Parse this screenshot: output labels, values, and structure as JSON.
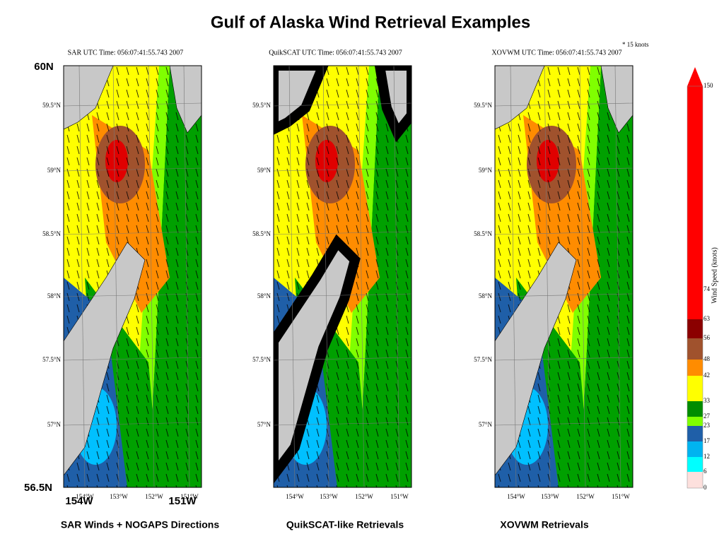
{
  "title": "Gulf of Alaska Wind Retrieval Examples",
  "corner_labels": {
    "lat_top": "60N",
    "lat_bottom": "56.5N",
    "lon_left": "154W",
    "lon_right": "151W"
  },
  "vector_key": "* 15 knots",
  "panels": [
    {
      "header": "SAR UTC Time: 056:07:41:55.743 2007",
      "caption": "SAR Winds + NOGAPS Directions",
      "lat_ticks": [
        "59.5°N",
        "59°N",
        "58.5°N",
        "58°N",
        "57.5°N",
        "57°N"
      ],
      "lon_ticks": [
        "154°W",
        "153°W",
        "152°W",
        "151°W"
      ]
    },
    {
      "header": "QuikSCAT UTC Time: 056:07:41:55.743 2007",
      "caption": "QuikSCAT-like Retrievals",
      "lat_ticks": [
        "59.5°N",
        "59°N",
        "58.5°N",
        "58°N",
        "57.5°N",
        "57°N"
      ],
      "lon_ticks": [
        "154°W",
        "153°W",
        "152°W",
        "151°W"
      ]
    },
    {
      "header": "XOVWM UTC Time: 056:07:41:55.743 2007",
      "caption": "XOVWM Retrievals",
      "lat_ticks": [
        "59.5°N",
        "59°N",
        "58.5°N",
        "58°N",
        "57.5°N",
        "57°N"
      ],
      "lon_ticks": [
        "154°W",
        "153°W",
        "152°W",
        "151°W"
      ]
    }
  ],
  "colorbar": {
    "label": "Wind Speed (knots)",
    "ticks": [
      0,
      6,
      12,
      17,
      23,
      27,
      33,
      42,
      48,
      56,
      63,
      74,
      150
    ],
    "colors": [
      "#fde0dd",
      "#00ffff",
      "#00b4f0",
      "#1f5fa8",
      "#80ff00",
      "#008c00",
      "#ffff00",
      "#ff8c00",
      "#a0522d",
      "#8b0000",
      "#ff0000",
      "#ff0000"
    ]
  }
}
